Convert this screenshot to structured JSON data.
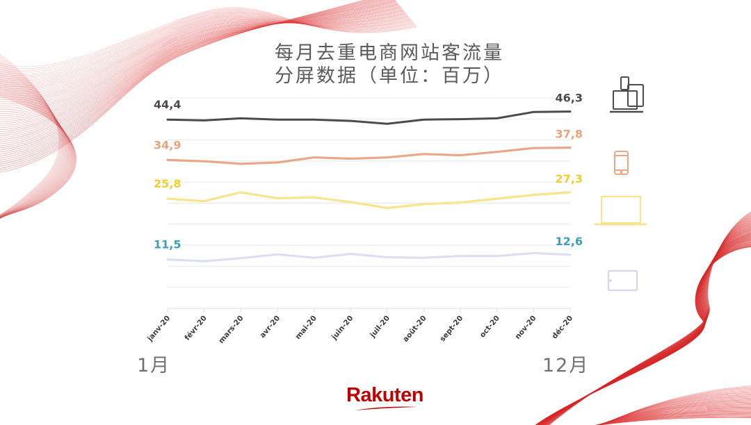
{
  "title": {
    "line1": "每月去重电商网站客流量",
    "line2": "分屏数据（单位：百万）"
  },
  "footer": {
    "start_label": "1月",
    "end_label": "12月",
    "logo_text": "Rakuten"
  },
  "colors": {
    "total": "#4d4a4a",
    "mobile": "#e8a888",
    "desktop": "#f8e48c",
    "tablet": "#dcdff0",
    "total_label": "#4d4a4a",
    "mobile_label": "#e4a47e",
    "desktop_label": "#f0cf2a",
    "tablet_label": "#3e9cb8",
    "gridline": "#e8e8ec",
    "brand": "#bf0000",
    "decoration": "#e04040"
  },
  "icons": [
    {
      "series": "total",
      "name": "multi-device-icon"
    },
    {
      "series": "mobile",
      "name": "smartphone-icon"
    },
    {
      "series": "desktop",
      "name": "laptop-icon"
    },
    {
      "series": "tablet",
      "name": "tablet-icon"
    }
  ],
  "chart_data": {
    "type": "line",
    "title": "每月去重电商网站客流量 分屏数据（单位：百万）",
    "xlabel": "",
    "ylabel": "",
    "categories": [
      "janv-20",
      "févr-20",
      "mars-20",
      "avr-20",
      "mai-20",
      "juin-20",
      "juil-20",
      "août-20",
      "sept-20",
      "oct-20",
      "nov-20",
      "déc-20"
    ],
    "series": [
      {
        "name": "Total (all devices)",
        "key": "total",
        "start_label": "44,4",
        "end_label": "46,3",
        "values": [
          44.4,
          44.2,
          44.7,
          44.4,
          44.4,
          44.1,
          43.4,
          44.4,
          44.5,
          44.7,
          46.2,
          46.3
        ]
      },
      {
        "name": "Mobile",
        "key": "mobile",
        "start_label": "34,9",
        "end_label": "37,8",
        "values": [
          34.9,
          34.6,
          34.0,
          34.3,
          35.5,
          35.2,
          35.5,
          36.3,
          36.0,
          36.8,
          37.7,
          37.8
        ]
      },
      {
        "name": "Desktop",
        "key": "desktop",
        "start_label": "25,8",
        "end_label": "27,3",
        "values": [
          25.8,
          25.2,
          27.3,
          25.9,
          26.1,
          25.0,
          23.6,
          24.5,
          24.9,
          25.8,
          26.7,
          27.3
        ]
      },
      {
        "name": "Tablet",
        "key": "tablet",
        "start_label": "11,5",
        "end_label": "12,6",
        "values": [
          11.5,
          11.1,
          11.8,
          12.7,
          11.9,
          12.8,
          12.0,
          11.9,
          12.3,
          12.3,
          13.0,
          12.6
        ]
      }
    ],
    "ylim": [
      0,
      49.5
    ],
    "grid": true,
    "gridline_count": 10,
    "legend": "icons at right edge, value labels at start and end of each line"
  }
}
